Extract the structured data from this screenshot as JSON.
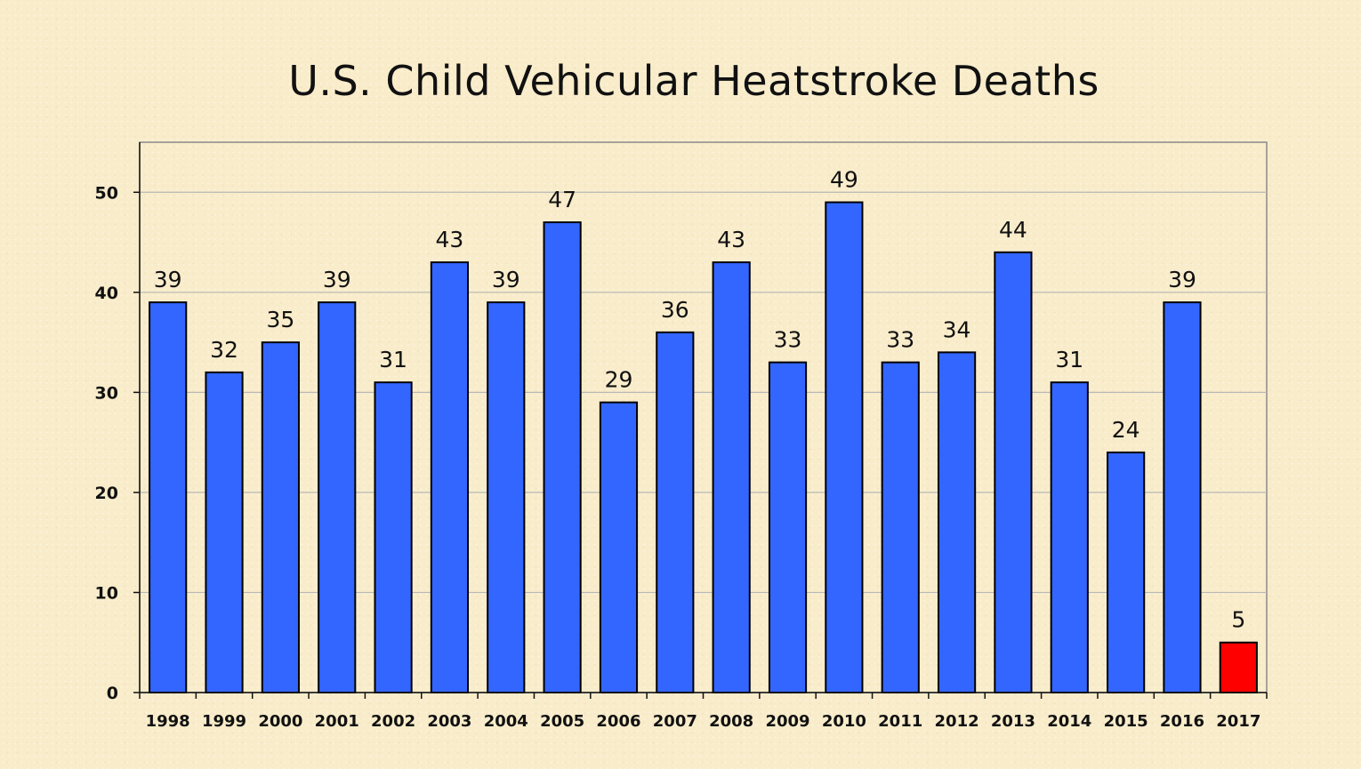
{
  "chart_data": {
    "type": "bar",
    "title": "U.S. Child Vehicular Heatstroke Deaths",
    "xlabel": "",
    "ylabel": "",
    "categories": [
      "1998",
      "1999",
      "2000",
      "2001",
      "2002",
      "2003",
      "2004",
      "2005",
      "2006",
      "2007",
      "2008",
      "2009",
      "2010",
      "2011",
      "2012",
      "2013",
      "2014",
      "2015",
      "2016",
      "2017"
    ],
    "values": [
      39,
      32,
      35,
      39,
      31,
      43,
      39,
      47,
      29,
      36,
      43,
      33,
      49,
      33,
      34,
      44,
      31,
      24,
      39,
      5
    ],
    "highlight_category": "2017",
    "ylim": [
      0,
      55
    ],
    "yticks": [
      0,
      10,
      20,
      30,
      40,
      50
    ],
    "grid": true,
    "legend": "none",
    "colors": {
      "bar": "#3366ff",
      "highlight": "#ff0000",
      "grid": "#b8b8b8",
      "border": "#8a8a8a"
    }
  }
}
